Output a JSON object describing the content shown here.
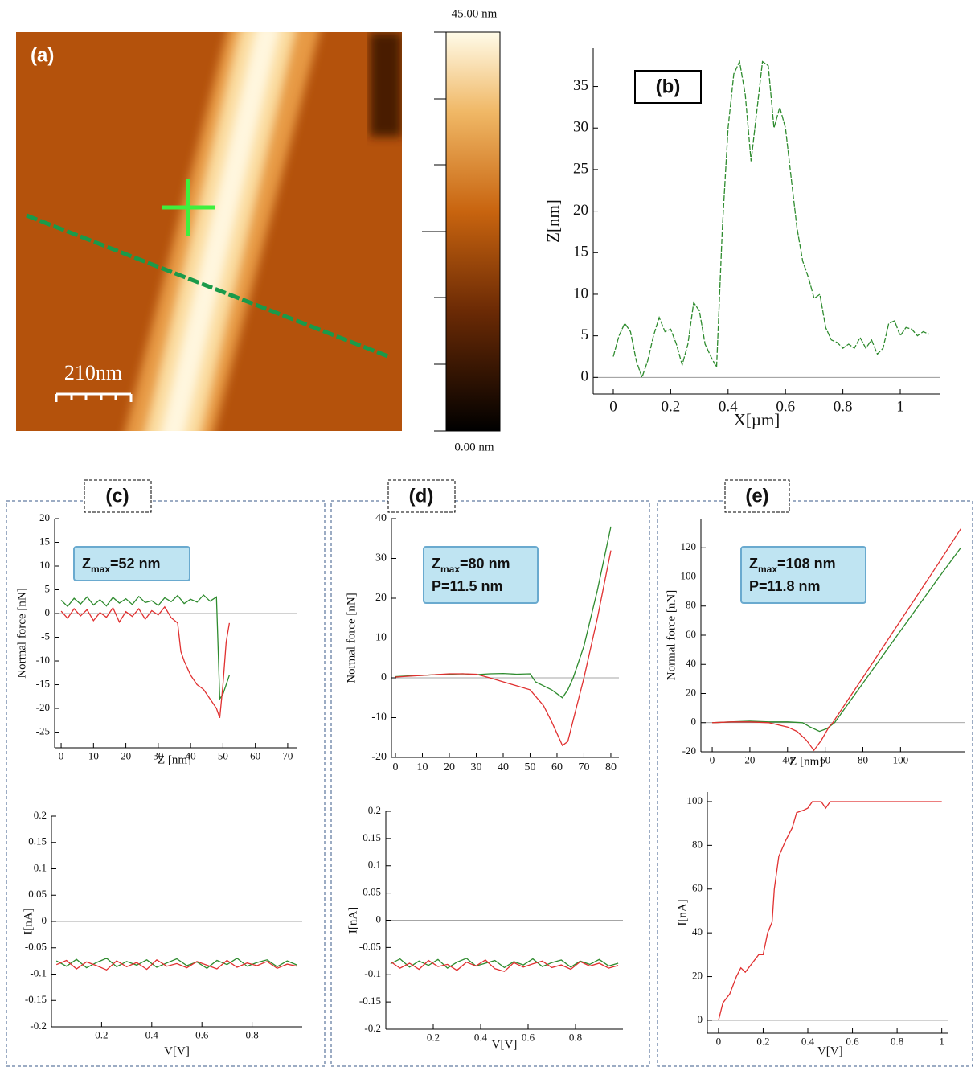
{
  "chart_data": [
    {
      "type": "image",
      "panel_label": "(a)",
      "scale_bar": "210nm",
      "clim": [
        0,
        45
      ],
      "cticks": [
        {
          "value": 0,
          "label": "0.00 nm"
        },
        {
          "value": 45,
          "label": "45.00 nm"
        }
      ]
    },
    {
      "type": "line",
      "panel_label": "(b)",
      "xlabel": "X[µm]",
      "ylabel": "Z[nm]",
      "xlim": [
        -0.07,
        1.14
      ],
      "ylim": [
        -2,
        39.6
      ],
      "xticks": [
        0,
        0.2,
        0.4,
        0.6,
        0.8,
        1
      ],
      "yticks": [
        0,
        5,
        10,
        15,
        20,
        25,
        30,
        35
      ],
      "series": [
        {
          "color": "#2e8b2e",
          "dashed": true,
          "x": [
            0,
            0.02,
            0.04,
            0.06,
            0.08,
            0.1,
            0.12,
            0.14,
            0.16,
            0.18,
            0.2,
            0.22,
            0.24,
            0.26,
            0.28,
            0.3,
            0.32,
            0.34,
            0.36,
            0.38,
            0.4,
            0.42,
            0.44,
            0.46,
            0.48,
            0.5,
            0.52,
            0.54,
            0.56,
            0.58,
            0.6,
            0.62,
            0.64,
            0.66,
            0.68,
            0.7,
            0.72,
            0.74,
            0.76,
            0.78,
            0.8,
            0.82,
            0.84,
            0.86,
            0.88,
            0.9,
            0.92,
            0.94,
            0.96,
            0.98,
            1,
            1.02,
            1.04,
            1.06,
            1.08,
            1.1
          ],
          "values": [
            2.5,
            5,
            6.5,
            5.5,
            2,
            0,
            2,
            5,
            7.2,
            5.5,
            5.8,
            4,
            1.5,
            4,
            9,
            8,
            4,
            2.5,
            1.2,
            18,
            30,
            36.5,
            38,
            34,
            26,
            32,
            38,
            37.5,
            30,
            32.5,
            30,
            24,
            18,
            14,
            12,
            9.5,
            10,
            6,
            4.5,
            4.2,
            3.5,
            4,
            3.5,
            4.8,
            3.5,
            4.5,
            2.8,
            3.5,
            6.5,
            6.8,
            5,
            6,
            5.8,
            5,
            5.5,
            5.2
          ]
        }
      ]
    },
    {
      "type": "line",
      "panel_label": "(c)",
      "xlabel": "Z [nm]",
      "ylabel": "Normal force [nN]",
      "annotations": [
        [
          "Z",
          "max",
          "=52 nm"
        ]
      ],
      "xlim": [
        -2,
        73
      ],
      "ylim": [
        -28.3,
        20
      ],
      "xticks": [
        0,
        10,
        20,
        30,
        40,
        50,
        60,
        70
      ],
      "yticks": [
        -25,
        -20,
        -15,
        -10,
        -5,
        0,
        5,
        10,
        15,
        20
      ],
      "series": [
        {
          "color": "#2e8b2e",
          "x": [
            0,
            2,
            4,
            6,
            8,
            10,
            12,
            14,
            16,
            18,
            20,
            22,
            24,
            26,
            28,
            30,
            32,
            34,
            36,
            38,
            40,
            42,
            44,
            46,
            48,
            49,
            50,
            51,
            52
          ],
          "values": [
            2.8,
            1.5,
            3.2,
            2,
            3.5,
            1.8,
            2.9,
            1.6,
            3.4,
            2.2,
            3.1,
            1.9,
            3.6,
            2.3,
            2.7,
            1.7,
            3.3,
            2.5,
            3.8,
            2.1,
            3,
            2.4,
            3.9,
            2.6,
            3.5,
            -18,
            -17,
            -15,
            -13
          ]
        },
        {
          "color": "#e03030",
          "x": [
            0,
            2,
            4,
            6,
            8,
            10,
            12,
            14,
            16,
            18,
            20,
            22,
            24,
            26,
            28,
            30,
            32,
            34,
            36,
            37,
            38,
            40,
            42,
            44,
            46,
            48,
            49,
            50,
            51,
            52
          ],
          "values": [
            0.5,
            -1,
            1,
            -0.5,
            0.8,
            -1.5,
            0.2,
            -0.8,
            1.2,
            -1.8,
            0.4,
            -0.6,
            1,
            -1.2,
            0.6,
            -0.3,
            1.4,
            -0.9,
            -2,
            -8,
            -10,
            -13,
            -15,
            -16,
            -18,
            -20,
            -22,
            -15,
            -6,
            -2
          ]
        }
      ]
    },
    {
      "type": "line",
      "xlabel": "V[V]",
      "ylabel": "I[nA]",
      "xlim": [
        0,
        1
      ],
      "ylim": [
        -0.2,
        0.2
      ],
      "xticks": [
        0.2,
        0.4,
        0.6,
        0.8
      ],
      "yticks": [
        -0.2,
        -0.15,
        -0.1,
        -0.05,
        0,
        0.05,
        0.1,
        0.15,
        0.2
      ],
      "series": [
        {
          "color": "#2e8b2e",
          "x": [
            0.02,
            0.06,
            0.1,
            0.14,
            0.18,
            0.22,
            0.26,
            0.3,
            0.34,
            0.38,
            0.42,
            0.46,
            0.5,
            0.54,
            0.58,
            0.62,
            0.66,
            0.7,
            0.74,
            0.78,
            0.82,
            0.86,
            0.9,
            0.94,
            0.98
          ],
          "values": [
            -0.075,
            -0.085,
            -0.072,
            -0.088,
            -0.078,
            -0.07,
            -0.086,
            -0.076,
            -0.083,
            -0.073,
            -0.087,
            -0.079,
            -0.071,
            -0.084,
            -0.077,
            -0.089,
            -0.074,
            -0.082,
            -0.07,
            -0.085,
            -0.078,
            -0.073,
            -0.086,
            -0.075,
            -0.083
          ]
        },
        {
          "color": "#e03030",
          "x": [
            0.02,
            0.06,
            0.1,
            0.14,
            0.18,
            0.22,
            0.26,
            0.3,
            0.34,
            0.38,
            0.42,
            0.46,
            0.5,
            0.54,
            0.58,
            0.62,
            0.66,
            0.7,
            0.74,
            0.78,
            0.82,
            0.86,
            0.9,
            0.94,
            0.98
          ],
          "values": [
            -0.082,
            -0.074,
            -0.09,
            -0.077,
            -0.084,
            -0.092,
            -0.075,
            -0.086,
            -0.078,
            -0.091,
            -0.073,
            -0.085,
            -0.08,
            -0.088,
            -0.076,
            -0.083,
            -0.09,
            -0.074,
            -0.087,
            -0.079,
            -0.084,
            -0.076,
            -0.089,
            -0.081,
            -0.085
          ]
        }
      ]
    },
    {
      "type": "line",
      "panel_label": "(d)",
      "ylabel": "Normal force [nN]",
      "annotations": [
        [
          "Z",
          "max",
          "=80 nm"
        ],
        [
          "P=11.5 nm"
        ]
      ],
      "xlim": [
        -1.5,
        83
      ],
      "ylim": [
        -20,
        40
      ],
      "xticks": [
        0,
        10,
        20,
        30,
        40,
        50,
        60,
        70,
        80
      ],
      "yticks": [
        -20,
        -10,
        0,
        10,
        20,
        30,
        40
      ],
      "series": [
        {
          "color": "#2e8b2e",
          "x": [
            0,
            5,
            10,
            15,
            20,
            25,
            30,
            35,
            40,
            45,
            50,
            52,
            55,
            58,
            60,
            62,
            64,
            66,
            70,
            75,
            80
          ],
          "values": [
            0.3,
            0.5,
            0.6,
            0.8,
            0.9,
            1,
            0.8,
            1,
            1.1,
            0.9,
            1,
            -1,
            -2,
            -3,
            -4,
            -5,
            -3,
            0,
            8,
            22,
            38
          ]
        },
        {
          "color": "#e03030",
          "x": [
            0,
            5,
            10,
            15,
            20,
            25,
            30,
            35,
            40,
            45,
            50,
            55,
            58,
            60,
            62,
            64,
            67,
            70,
            75,
            80
          ],
          "values": [
            0.2,
            0.4,
            0.6,
            0.8,
            1,
            1,
            0.9,
            0,
            -1,
            -2,
            -3,
            -7,
            -11,
            -14,
            -17,
            -16,
            -8,
            0,
            15,
            32
          ]
        }
      ]
    },
    {
      "type": "line",
      "xlabel": "V[V]",
      "ylabel": "I[nA]",
      "xlim": [
        0,
        1
      ],
      "ylim": [
        -0.2,
        0.2
      ],
      "xticks": [
        0.2,
        0.4,
        0.6,
        0.8
      ],
      "yticks": [
        -0.2,
        -0.15,
        -0.1,
        -0.05,
        0,
        0.05,
        0.1,
        0.15,
        0.2
      ],
      "series": [
        {
          "color": "#2e8b2e",
          "x": [
            0.02,
            0.06,
            0.1,
            0.14,
            0.18,
            0.22,
            0.26,
            0.3,
            0.34,
            0.38,
            0.42,
            0.46,
            0.5,
            0.54,
            0.58,
            0.62,
            0.66,
            0.7,
            0.74,
            0.78,
            0.82,
            0.86,
            0.9,
            0.94,
            0.98
          ],
          "values": [
            -0.08,
            -0.071,
            -0.086,
            -0.075,
            -0.083,
            -0.072,
            -0.088,
            -0.077,
            -0.07,
            -0.084,
            -0.079,
            -0.074,
            -0.087,
            -0.076,
            -0.082,
            -0.071,
            -0.085,
            -0.078,
            -0.073,
            -0.086,
            -0.075,
            -0.081,
            -0.072,
            -0.084,
            -0.079
          ]
        },
        {
          "color": "#e03030",
          "x": [
            0.02,
            0.06,
            0.1,
            0.14,
            0.18,
            0.22,
            0.26,
            0.3,
            0.34,
            0.38,
            0.42,
            0.46,
            0.5,
            0.54,
            0.58,
            0.62,
            0.66,
            0.7,
            0.74,
            0.78,
            0.82,
            0.86,
            0.9,
            0.94,
            0.98
          ],
          "values": [
            -0.076,
            -0.088,
            -0.079,
            -0.09,
            -0.074,
            -0.085,
            -0.081,
            -0.092,
            -0.077,
            -0.084,
            -0.073,
            -0.089,
            -0.094,
            -0.078,
            -0.086,
            -0.08,
            -0.075,
            -0.087,
            -0.082,
            -0.09,
            -0.076,
            -0.084,
            -0.079,
            -0.088,
            -0.083
          ]
        }
      ]
    },
    {
      "type": "line",
      "panel_label": "(e)",
      "xlabel": "Z [nm]",
      "ylabel": "Normal force [nN]",
      "annotations": [
        [
          "Z",
          "max",
          "=108 nm"
        ],
        [
          "P=11.8 nm"
        ]
      ],
      "xlim": [
        -6,
        134
      ],
      "ylim": [
        -20,
        140
      ],
      "xticks": [
        0,
        20,
        40,
        60,
        80,
        100
      ],
      "yticks": [
        -20,
        0,
        20,
        40,
        60,
        80,
        100,
        120
      ],
      "series": [
        {
          "color": "#2e8b2e",
          "x": [
            0,
            10,
            20,
            30,
            40,
            48,
            52,
            57,
            61,
            65,
            80,
            100,
            120,
            132
          ],
          "values": [
            0,
            0.5,
            1,
            0.5,
            0.5,
            0,
            -3,
            -6,
            -4,
            0,
            27,
            63,
            99,
            120
          ]
        },
        {
          "color": "#e03030",
          "x": [
            0,
            10,
            20,
            30,
            40,
            45,
            50,
            54,
            58,
            62,
            64,
            80,
            100,
            120,
            132
          ],
          "values": [
            0,
            0.5,
            0.5,
            0,
            -3,
            -6,
            -12,
            -19,
            -12,
            -3,
            0,
            31,
            70,
            109,
            133
          ]
        }
      ]
    },
    {
      "type": "line",
      "xlabel": "V[V]",
      "ylabel": "I[nA]",
      "xlim": [
        -0.05,
        1.03
      ],
      "ylim": [
        -5.9,
        104.4
      ],
      "xticks": [
        0,
        0.2,
        0.4,
        0.6,
        0.8,
        1
      ],
      "yticks": [
        0,
        20,
        40,
        60,
        80,
        100
      ],
      "series": [
        {
          "color": "#e03030",
          "x": [
            0,
            0.02,
            0.05,
            0.08,
            0.1,
            0.12,
            0.15,
            0.18,
            0.2,
            0.22,
            0.24,
            0.25,
            0.27,
            0.3,
            0.33,
            0.35,
            0.38,
            0.4,
            0.42,
            0.46,
            0.48,
            0.5,
            1
          ],
          "values": [
            0,
            8,
            12,
            20,
            24,
            22,
            26,
            30,
            30,
            40,
            45,
            60,
            75,
            82,
            88,
            95,
            96,
            97,
            100,
            100,
            97,
            100,
            100
          ]
        }
      ]
    }
  ]
}
